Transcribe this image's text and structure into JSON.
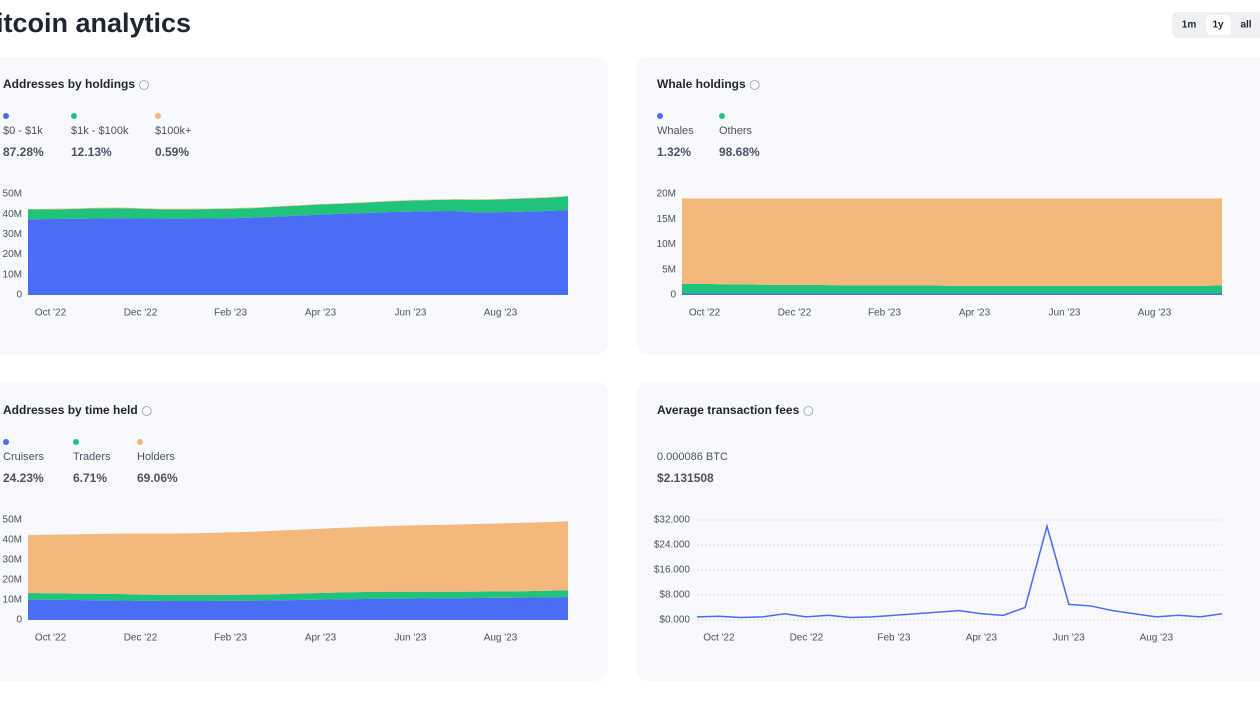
{
  "header": {
    "title": "itcoin analytics",
    "ranges": [
      "1m",
      "1y",
      "all"
    ]
  },
  "chart_data": [
    {
      "type": "area",
      "title": "Addresses by holdings",
      "categories": [
        null,
        "Oct '22",
        null,
        null,
        null,
        "Dec '22",
        null,
        null,
        null,
        "Feb '23",
        null,
        null,
        null,
        "Apr '23",
        null,
        null,
        null,
        "Jun '23",
        null,
        null,
        null,
        "Aug '23",
        null,
        null,
        null
      ],
      "series": [
        {
          "name": "$0 - $1k",
          "share": "87.28%",
          "color": "#4a6cf7",
          "values": [
            37.5,
            37.6,
            37.7,
            37.9,
            38.0,
            37.9,
            37.8,
            37.8,
            37.9,
            38.0,
            38.3,
            38.8,
            39.3,
            39.8,
            40.2,
            40.6,
            41.0,
            41.3,
            41.5,
            41.6,
            40.8,
            41.0,
            41.3,
            41.6,
            42.0
          ]
        },
        {
          "name": "$1k - $100k",
          "share": "12.13%",
          "color": "#1fc47a",
          "values": [
            4.8,
            4.8,
            4.9,
            5.0,
            5.0,
            4.8,
            4.6,
            4.6,
            4.6,
            4.7,
            4.7,
            4.8,
            4.9,
            5.0,
            5.0,
            5.1,
            5.3,
            5.4,
            5.5,
            5.6,
            6.3,
            6.3,
            6.4,
            6.5,
            6.8
          ]
        },
        {
          "name": "$100k+",
          "share": "0.59%",
          "color": "#f4b77c",
          "values": [
            0.3,
            0.3,
            0.3,
            0.3,
            0.3,
            0.3,
            0.3,
            0.3,
            0.3,
            0.3,
            0.3,
            0.3,
            0.3,
            0.3,
            0.3,
            0.3,
            0.3,
            0.3,
            0.3,
            0.3,
            0.3,
            0.3,
            0.3,
            0.3,
            0.3
          ]
        }
      ],
      "ylim": [
        0,
        50
      ],
      "yticks": [
        0,
        {
          "value": 10,
          "label": "10M"
        },
        {
          "value": 20,
          "label": "20M"
        },
        {
          "value": 30,
          "label": "30M"
        },
        {
          "value": 40,
          "label": "40M"
        },
        {
          "value": 50,
          "label": "50M"
        }
      ],
      "stacked": true,
      "grid": false
    },
    {
      "type": "area",
      "title": "Whale holdings",
      "categories": [
        null,
        "Oct '22",
        null,
        null,
        null,
        "Dec '22",
        null,
        null,
        null,
        "Feb '23",
        null,
        null,
        null,
        "Apr '23",
        null,
        null,
        null,
        "Jun '23",
        null,
        null,
        null,
        "Aug '23",
        null,
        null,
        null
      ],
      "series": [
        {
          "name": "Whales",
          "share": "1.32%",
          "color": "#4a6cf7",
          "values": [
            0.3,
            0.3,
            0.3,
            0.3,
            0.3,
            0.3,
            0.3,
            0.3,
            0.3,
            0.3,
            0.3,
            0.3,
            0.3,
            0.3,
            0.3,
            0.3,
            0.3,
            0.3,
            0.3,
            0.3,
            0.3,
            0.3,
            0.3,
            0.3,
            0.3
          ]
        },
        {
          "name": "Others",
          "share": "98.68%",
          "color": "#1fc47a",
          "values": [
            1.9,
            1.9,
            1.8,
            1.8,
            1.7,
            1.7,
            1.7,
            1.6,
            1.6,
            1.6,
            1.6,
            1.6,
            1.5,
            1.5,
            1.5,
            1.5,
            1.5,
            1.5,
            1.5,
            1.5,
            1.5,
            1.5,
            1.5,
            1.5,
            1.6
          ]
        },
        {
          "color": "#f4b77c",
          "values": [
            16.9,
            16.9,
            17.0,
            17.0,
            17.1,
            17.1,
            17.1,
            17.2,
            17.2,
            17.2,
            17.2,
            17.2,
            17.3,
            17.3,
            17.3,
            17.3,
            17.3,
            17.3,
            17.3,
            17.3,
            17.3,
            17.3,
            17.3,
            17.3,
            17.2
          ]
        }
      ],
      "ylim": [
        0,
        20
      ],
      "yticks": [
        0,
        {
          "value": 5,
          "label": "5M"
        },
        {
          "value": 10,
          "label": "10M"
        },
        {
          "value": 15,
          "label": "15M"
        },
        {
          "value": 20,
          "label": "20M"
        }
      ],
      "stacked": true,
      "grid": false
    },
    {
      "type": "area",
      "title": "Addresses by time held",
      "categories": [
        null,
        "Oct '22",
        null,
        null,
        null,
        "Dec '22",
        null,
        null,
        null,
        "Feb '23",
        null,
        null,
        null,
        "Apr '23",
        null,
        null,
        null,
        "Jun '23",
        null,
        null,
        null,
        "Aug '23",
        null,
        null,
        null
      ],
      "series": [
        {
          "name": "Cruisers",
          "share": "24.23%",
          "color": "#4a6cf7",
          "values": [
            10.2,
            10.1,
            10.0,
            9.9,
            9.8,
            9.6,
            9.5,
            9.5,
            9.5,
            9.6,
            9.7,
            9.8,
            10.0,
            10.2,
            10.4,
            10.5,
            10.6,
            10.7,
            10.8,
            10.9,
            11.0,
            11.1,
            11.2,
            11.3,
            11.5
          ]
        },
        {
          "name": "Traders",
          "share": "6.71%",
          "color": "#1fc47a",
          "values": [
            3.3,
            3.3,
            3.2,
            3.2,
            3.2,
            3.1,
            3.1,
            3.0,
            3.0,
            3.0,
            3.0,
            3.1,
            3.2,
            3.3,
            3.4,
            3.5,
            3.5,
            3.4,
            3.3,
            3.2,
            3.2,
            3.2,
            3.2,
            3.3,
            3.4
          ]
        },
        {
          "name": "Holders",
          "share": "69.06%",
          "color": "#f4b77c",
          "values": [
            29.0,
            29.3,
            29.6,
            29.9,
            30.2,
            30.5,
            30.6,
            30.8,
            31.0,
            31.2,
            31.4,
            31.7,
            31.9,
            32.1,
            32.3,
            32.6,
            32.9,
            33.2,
            33.4,
            33.6,
            33.8,
            34.0,
            34.2,
            34.3,
            34.5
          ]
        }
      ],
      "ylim": [
        0,
        50
      ],
      "yticks": [
        0,
        {
          "value": 10,
          "label": "10M"
        },
        {
          "value": 20,
          "label": "20M"
        },
        {
          "value": 30,
          "label": "30M"
        },
        {
          "value": 40,
          "label": "40M"
        },
        {
          "value": 50,
          "label": "50M"
        }
      ],
      "stacked": true,
      "grid": false
    },
    {
      "type": "line",
      "title": "Average transaction fees",
      "btc_fee": "0.000086 BTC",
      "usd_fee": "$2.131508",
      "categories": [
        null,
        "Oct '22",
        null,
        null,
        null,
        "Dec '22",
        null,
        null,
        null,
        "Feb '23",
        null,
        null,
        null,
        "Apr '23",
        null,
        null,
        null,
        "Jun '23",
        null,
        null,
        null,
        "Aug '23",
        null,
        null,
        null
      ],
      "series": [
        {
          "color": "#4a6cf7",
          "values": [
            1.0,
            1.2,
            0.8,
            1.0,
            2.0,
            1.0,
            1.5,
            0.8,
            1.0,
            1.5,
            2.0,
            2.5,
            3.0,
            2.0,
            1.5,
            4.0,
            30.0,
            5.0,
            4.5,
            3.0,
            2.0,
            1.0,
            1.5,
            1.0,
            2.0
          ]
        }
      ],
      "ylim": [
        0,
        32
      ],
      "yticks": [
        {
          "value": 0,
          "label": "$0.000"
        },
        {
          "value": 8,
          "label": "$8.000"
        },
        {
          "value": 16,
          "label": "$16.000"
        },
        {
          "value": 24,
          "label": "$24.000"
        },
        {
          "value": 32,
          "label": "$32.000"
        }
      ],
      "grid": true
    }
  ]
}
